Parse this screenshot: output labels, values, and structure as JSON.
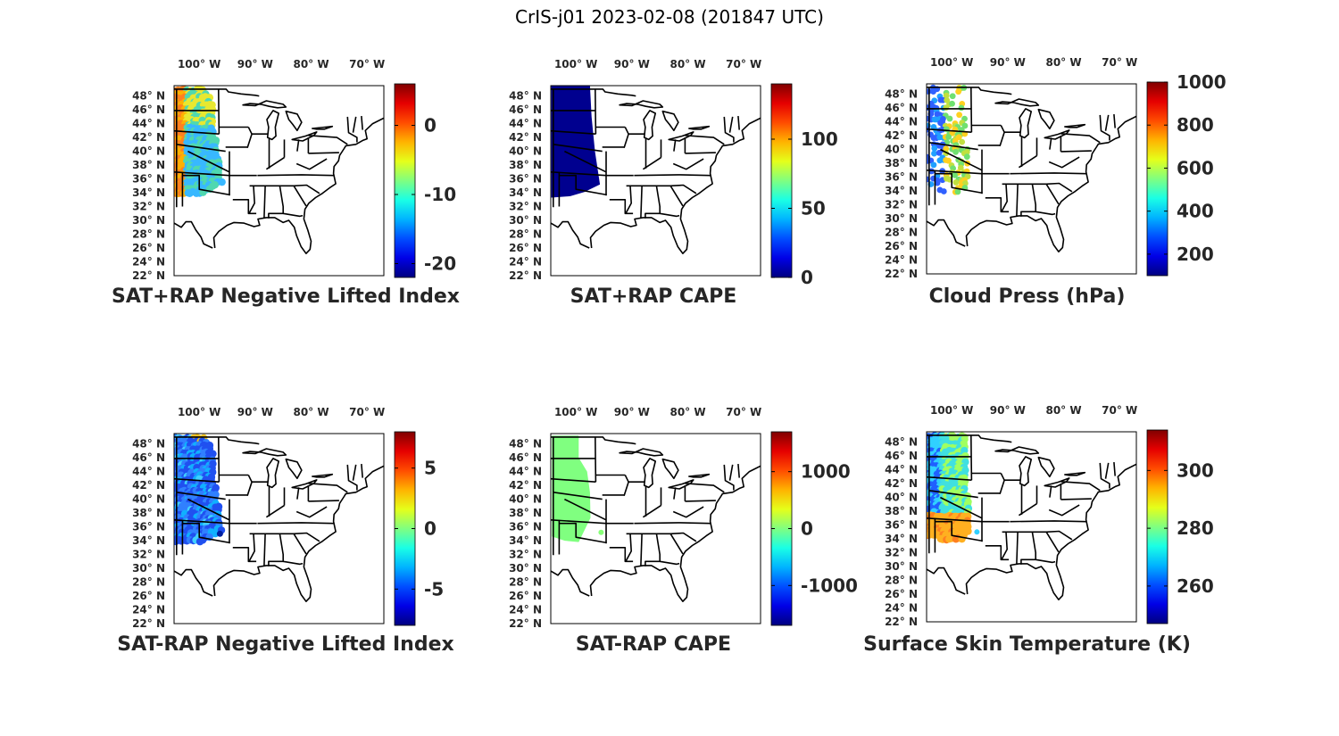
{
  "title": "CrIS-j01 2023-02-08 (201847 UTC)",
  "longitude_labels": [
    "100° W",
    "90° W",
    "80° W",
    "70° W"
  ],
  "latitude_labels": [
    "48° N",
    "46° N",
    "44° N",
    "42° N",
    "40° N",
    "38° N",
    "36° N",
    "34° N",
    "32° N",
    "30° N",
    "28° N",
    "26° N",
    "24° N",
    "22° N"
  ],
  "colormap": "jet",
  "panels": [
    {
      "title": "SAT+RAP Negative Lifted Index",
      "colorbar_ticks": [
        "0",
        "-10",
        "-20"
      ],
      "clim": [
        -22,
        6
      ],
      "field_palette": [
        "#ffb000",
        "#ffd000",
        "#4fd8b0",
        "#38b8ff",
        "#e8e830",
        "#ff8020"
      ]
    },
    {
      "title": "SAT+RAP CAPE",
      "colorbar_ticks": [
        "100",
        "50",
        "0"
      ],
      "clim": [
        0,
        140
      ],
      "field_palette": [
        "#00008f",
        "#000090",
        "#0000a0"
      ]
    },
    {
      "title": "Cloud Press (hPa)",
      "colorbar_ticks": [
        "1000",
        "800",
        "600",
        "400",
        "200"
      ],
      "clim": [
        100,
        1000
      ],
      "field_palette": [
        "#3060ff",
        "#20a0ff",
        "#70e070",
        "#c0e040",
        "#ffd020"
      ]
    },
    {
      "title": "SAT-RAP Negative Lifted Index",
      "colorbar_ticks": [
        "5",
        "0",
        "-5"
      ],
      "clim": [
        -8,
        8
      ],
      "field_palette": [
        "#2050f0",
        "#3080ff",
        "#10b0ff",
        "#40d0ff",
        "#0040d0"
      ]
    },
    {
      "title": "SAT-RAP CAPE",
      "colorbar_ticks": [
        "1000",
        "0",
        "-1000"
      ],
      "clim": [
        -1700,
        1700
      ],
      "field_palette": [
        "#80ff80",
        "#88ff78",
        "#78f088"
      ]
    },
    {
      "title": "Surface Skin Temperature (K)",
      "colorbar_ticks": [
        "300",
        "280",
        "260"
      ],
      "clim": [
        247,
        314
      ],
      "field_palette": [
        "#30d0ff",
        "#40e0e0",
        "#a0ff60",
        "#ffb020",
        "#2060ff"
      ]
    }
  ]
}
